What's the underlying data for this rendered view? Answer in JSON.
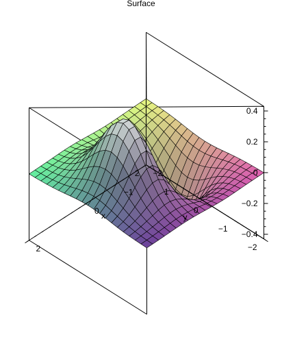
{
  "chart_data": {
    "type": "surface",
    "title": "Surface",
    "xlabel": "x",
    "ylabel": "y",
    "zlabel": "",
    "xlim": [
      -2,
      2
    ],
    "ylim": [
      -2,
      2
    ],
    "zlim": [
      -0.43,
      0.43
    ],
    "z_ticks": [
      "0.4",
      "0.2",
      "0",
      "−0.2",
      "−0.4"
    ],
    "y_ticks": [
      "−2",
      "−1",
      "0",
      "1",
      "2"
    ],
    "x_ticks": [
      "−2",
      "−1",
      "0",
      "2"
    ],
    "function": "z = x · exp(−x² − y²)",
    "grid_resolution": 21,
    "grid": "wireframe",
    "colormap": {
      "far_corner": "#6a3f9a",
      "left_corner": "#e060b0",
      "right_corner": "#60f0a0",
      "near_corner": "#e8f880",
      "peak_highlight": "#ffffff"
    }
  }
}
